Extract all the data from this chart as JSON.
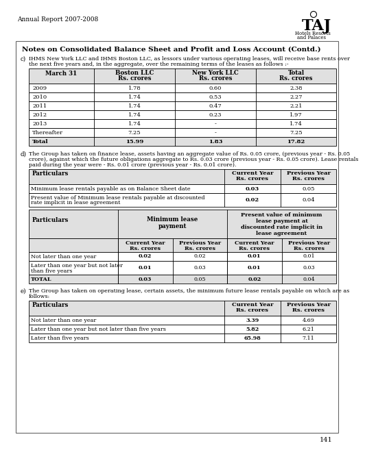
{
  "page_header": "Annual Report 2007-2008",
  "page_number": "141",
  "section_title": "Notes on Consolidated Balance Sheet and Profit and Loss Account (Contd.)",
  "section_c_label": "c)",
  "section_c_text1": "IHMS New York LLC and IHMS Boston LLC, as lessors under various operating leases, will receive base rents over",
  "section_c_text2": "the next five years and, in the aggregate, over the remaining terms of the leases as follows :-",
  "table1_headers": [
    "March 31",
    "Boston LLC\nRs. crores",
    "New York LLC\nRs. crores",
    "Total\nRs. crores"
  ],
  "table1_rows": [
    [
      "2009",
      "1.78",
      "0.60",
      "2.38"
    ],
    [
      "2010",
      "1.74",
      "0.53",
      "2.27"
    ],
    [
      "2011",
      "1.74",
      "0.47",
      "2.21"
    ],
    [
      "2012",
      "1.74",
      "0.23",
      "1.97"
    ],
    [
      "2013",
      "1.74",
      "-",
      "1.74"
    ],
    [
      "Thereafter",
      "7.25",
      "-",
      "7.25"
    ],
    [
      "Total",
      "15.99",
      "1.83",
      "17.82"
    ]
  ],
  "section_d_label": "d)",
  "section_d_text1": "The Group has taken on finance lease, assets having an aggregate value of Rs. 0.05 crore, (previous year - Rs. 0.05",
  "section_d_text2": "crore), against which the future obligations aggregate to Rs. 0.03 crore (previous year - Rs. 0.05 crore). Lease rentals",
  "section_d_text3": "paid during the year were - Rs. 0.01 crore (previous year - Rs. 0.01 crore).",
  "table2_headers": [
    "Particulars",
    "Current Year\nRs. crores",
    "Previous Year\nRs. crores"
  ],
  "table2_rows": [
    [
      "Minimum lease rentals payable as on Balance Sheet date",
      "0.03",
      "0.05"
    ],
    [
      "Present value of Minimum lease rentals payable at discounted\nrate implicit in lease agreement",
      "0.02",
      "0.04"
    ]
  ],
  "table3_col1_header": "Particulars",
  "table3_col2_header": "Minimum lease\npayment",
  "table3_col3_header": "Present value of minimum\nlease payment at\ndiscounted rate implicit in\nlease agreement",
  "table3_subheaders": [
    "Current Year\nRs. crores",
    "Previous Year\nRs. crores",
    "Current Year\nRs. crores",
    "Previous Year\nRs. crores"
  ],
  "table3_rows": [
    [
      "Not later than one year",
      "0.02",
      "0.02",
      "0.01",
      "0.01"
    ],
    [
      "Later than one year but not later\nthan five years",
      "0.01",
      "0.03",
      "0.01",
      "0.03"
    ],
    [
      "TOTAL",
      "0.03",
      "0.05",
      "0.02",
      "0.04"
    ]
  ],
  "section_e_label": "e)",
  "section_e_text1": "The Group has taken on operating lease, certain assets, the minimum future lease rentals payable on which are as",
  "section_e_text2": "follows:",
  "table4_headers": [
    "Particulars",
    "Current Year\nRs. crores",
    "Previous Year\nRs. crores"
  ],
  "table4_rows": [
    [
      "Not later than one year",
      "3.39",
      "4.69"
    ],
    [
      "Later than one year but not later than five years",
      "5.82",
      "6.21"
    ],
    [
      "Later than five years",
      "65.98",
      "7.11"
    ]
  ],
  "bg_color": "#ffffff"
}
